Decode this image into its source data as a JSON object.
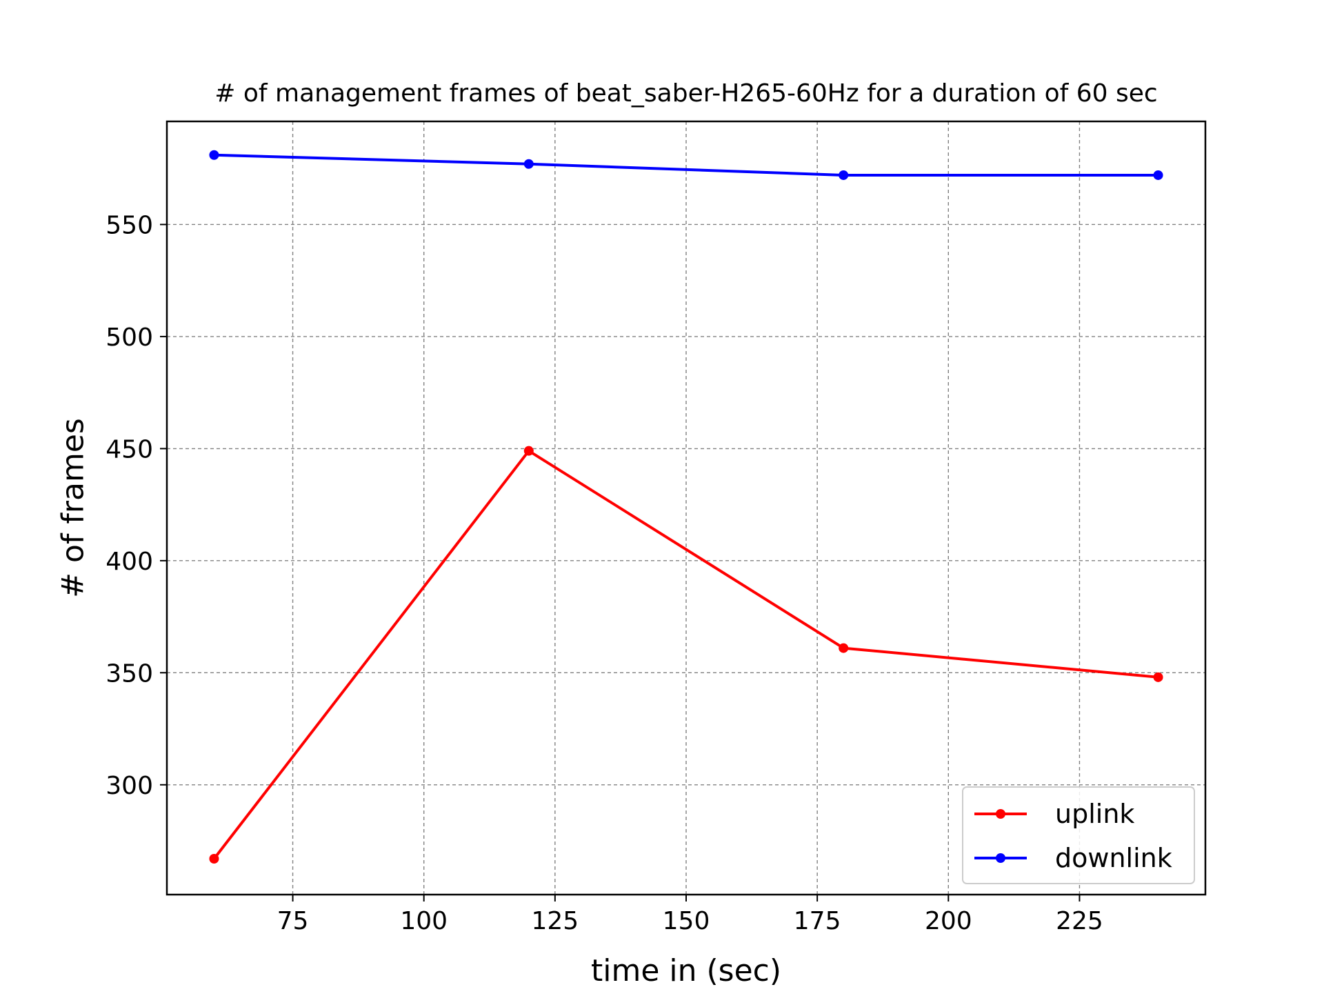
{
  "chart_data": {
    "type": "line",
    "title": "# of management frames of beat_saber-H265-60Hz for a duration of 60 sec",
    "xlabel": "time in (sec)",
    "ylabel": "# of frames",
    "x": [
      60,
      120,
      180,
      240
    ],
    "xlim": [
      51,
      249
    ],
    "ylim": [
      251,
      596
    ],
    "xticks": [
      75,
      100,
      125,
      150,
      175,
      200,
      225
    ],
    "yticks": [
      300,
      350,
      400,
      450,
      500,
      550
    ],
    "grid": true,
    "legend_position": "lower-right",
    "series": [
      {
        "name": "uplink",
        "color": "#ff0000",
        "values": [
          267,
          449,
          361,
          348
        ]
      },
      {
        "name": "downlink",
        "color": "#0000ff",
        "values": [
          581,
          577,
          572,
          572
        ]
      }
    ]
  }
}
